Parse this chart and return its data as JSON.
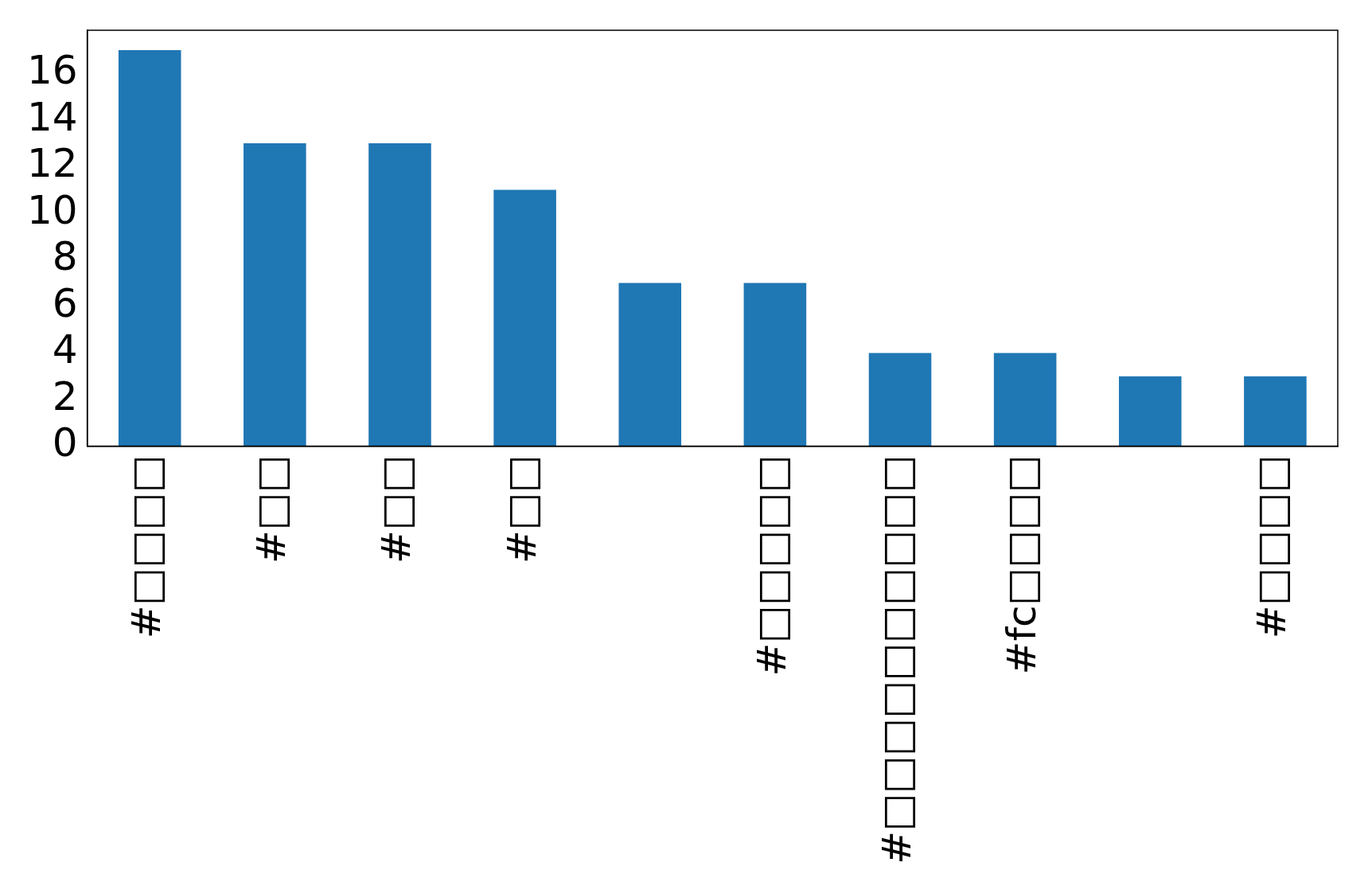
{
  "chart_data": {
    "type": "bar",
    "categories": [
      "#□□□□",
      "#□□",
      "#□□",
      "#□□",
      null,
      "#□□□□□",
      "#□□□□□□□□□□",
      "#fc□□□□",
      null,
      "#□□□□"
    ],
    "values": [
      17,
      13,
      13,
      11,
      7,
      7,
      4,
      4,
      3,
      3
    ],
    "color": "#1f77b4",
    "ylim": [
      0,
      17.85
    ],
    "yticks": [
      0,
      2,
      4,
      6,
      8,
      10,
      12,
      14,
      16
    ],
    "grid": false,
    "legend": false
  }
}
